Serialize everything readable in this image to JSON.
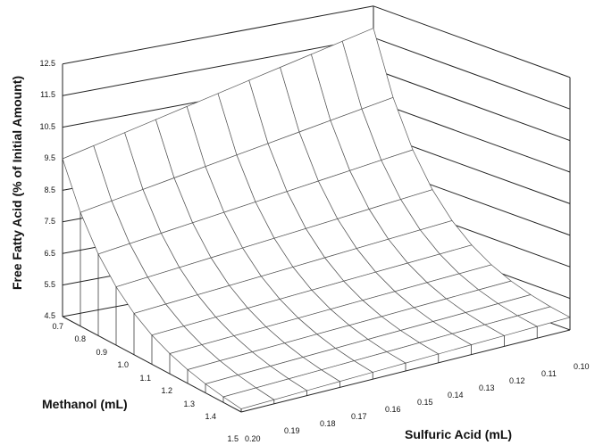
{
  "chart_data": {
    "type": "surface3d",
    "zlabel": "Free Fatty Acid (% of Initial Amount)",
    "methanol_label": "Methanol (mL)",
    "sulfuric_label": "Sulfuric Acid (mL)",
    "z_ticks": [
      "4.5",
      "5.5",
      "6.5",
      "7.5",
      "8.5",
      "9.5",
      "10.5",
      "11.5",
      "12.5"
    ],
    "methanol_ticks": [
      "0.7",
      "0.8",
      "0.9",
      "1.0",
      "1.1",
      "1.2",
      "1.3",
      "1.4",
      "1.5"
    ],
    "sulfuric_ticks": [
      "0.20",
      "0.19",
      "0.18",
      "0.17",
      "0.16",
      "0.15",
      "0.14",
      "0.13",
      "0.12",
      "0.11",
      "0.10"
    ],
    "zlim": [
      4.5,
      12.5
    ],
    "methanol_range": [
      0.7,
      1.5
    ],
    "sulfuric_range": [
      0.1,
      0.2
    ],
    "grid": true,
    "surface": {
      "description_points": [
        {
          "methanol": 0.7,
          "sulfuric": 0.2,
          "ffa": 9.5
        },
        {
          "methanol": 0.7,
          "sulfuric": 0.1,
          "ffa": 11.8
        },
        {
          "methanol": 1.5,
          "sulfuric": 0.1,
          "ffa": 4.9
        },
        {
          "methanol": 1.5,
          "sulfuric": 0.2,
          "ffa": 4.6
        }
      ]
    }
  }
}
